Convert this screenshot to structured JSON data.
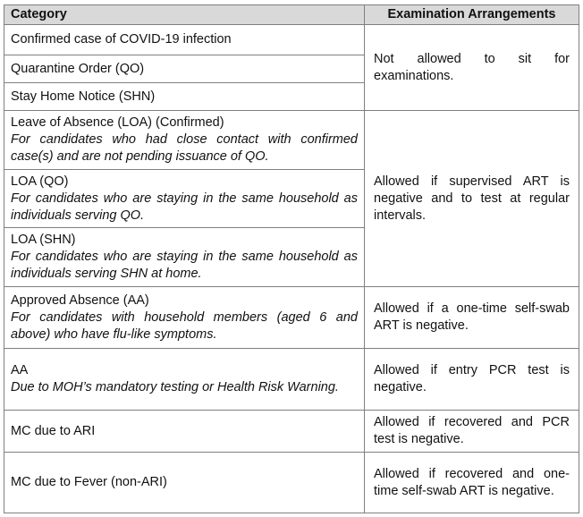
{
  "table": {
    "header": [
      "Category",
      "Examination Arrangements"
    ],
    "rows": [
      {
        "category": "Confirmed case of COVID-19 infection"
      },
      {
        "category": "Quarantine Order (QO)"
      },
      {
        "category": "Stay Home Notice (SHN)"
      },
      {
        "category": "Leave of Absence (LOA) (Confirmed)",
        "note": "For candidates who had close contact with confirmed case(s) and are not pending issuance of QO."
      },
      {
        "category": "LOA (QO)",
        "note": "For candidates who are staying in the same household as individuals serving QO."
      },
      {
        "category": "LOA (SHN)",
        "note": "For candidates who are staying in the same household as individuals serving SHN at home."
      },
      {
        "category": "Approved Absence (AA)",
        "note": "For candidates with household members (aged 6 and above) who have flu-like symptoms."
      },
      {
        "category": "AA",
        "note": "Due to MOH’s mandatory testing or Health Risk Warning."
      },
      {
        "category": "MC due to ARI"
      },
      {
        "category": "MC due to Fever (non-ARI)"
      }
    ],
    "arrangements": [
      "Not allowed to sit for examinations.",
      "Allowed if supervised ART is negative and to test at regular intervals.",
      "Allowed if a one-time self-swab ART is negative.",
      "Allowed if entry PCR test is negative.",
      "Allowed if recovered and PCR test is negative.",
      "Allowed if recovered and one-time self-swab ART is negative."
    ]
  }
}
